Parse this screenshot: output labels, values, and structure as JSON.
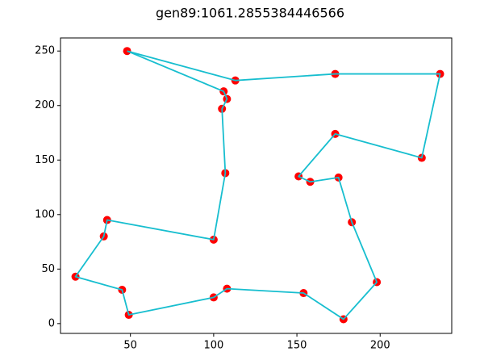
{
  "chart_data": {
    "type": "scatter",
    "title": "gen89:1061.2855384446566",
    "xlabel": "",
    "ylabel": "",
    "xlim": [
      8,
      243
    ],
    "ylim": [
      -9,
      262
    ],
    "xticks": [
      50,
      100,
      150,
      200
    ],
    "yticks": [
      0,
      50,
      100,
      150,
      200,
      250
    ],
    "grid": false,
    "point_color": "#ff0000",
    "line_color": "#17becf",
    "series": [
      {
        "x": [
          48,
          113,
          173,
          236,
          225,
          173,
          151,
          158,
          175,
          183,
          198,
          178,
          154,
          108,
          100,
          49,
          45,
          17,
          34,
          36,
          100,
          107,
          105,
          108,
          106,
          48
        ],
        "y": [
          250,
          223,
          229,
          229,
          152,
          174,
          135,
          130,
          134,
          93,
          38,
          4,
          28,
          32,
          24,
          8,
          31,
          43,
          80,
          95,
          77,
          138,
          197,
          206,
          213,
          250
        ]
      }
    ]
  }
}
